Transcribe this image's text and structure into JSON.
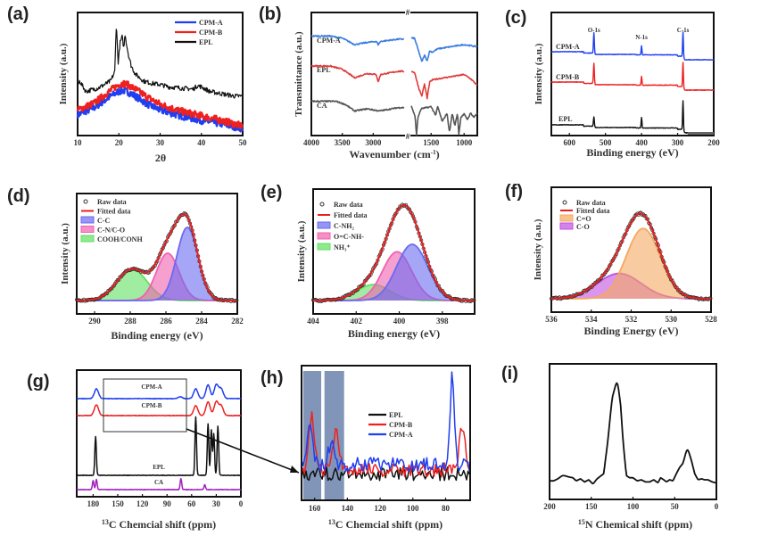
{
  "figure": {
    "panels": [
      "(a)",
      "(b)",
      "(c)",
      "(d)",
      "(e)",
      "(f)",
      "(g)",
      "(h)",
      "(i)"
    ]
  },
  "colors": {
    "blue": "#1f3ff0",
    "red": "#ee2020",
    "black": "#111111",
    "purple": "#a020c0",
    "ftir_blue": "#3a7de0",
    "ftir_red": "#e03a3a",
    "ftir_grey": "#555555",
    "shade": "#6b83ad"
  },
  "chart_data": [
    {
      "id": "a",
      "type": "line",
      "label": "(a)",
      "title": "",
      "xlabel": "2θ",
      "ylabel": "Intensity (a.u.)",
      "xlim": [
        10,
        50
      ],
      "xticks": [
        "10",
        "20",
        "30",
        "40",
        "50"
      ],
      "legend": {
        "placement": "top-right",
        "entries": [
          "CPM-A",
          "CPM-B",
          "EPL"
        ]
      },
      "series": [
        {
          "name": "CPM-A",
          "color": "blue",
          "x": [
            10,
            14,
            18,
            20,
            21,
            22,
            24,
            27,
            30,
            35,
            40,
            45,
            50
          ],
          "y": [
            0.18,
            0.24,
            0.34,
            0.38,
            0.39,
            0.38,
            0.34,
            0.27,
            0.22,
            0.17,
            0.13,
            0.1,
            0.06
          ]
        },
        {
          "name": "CPM-B",
          "color": "red",
          "x": [
            10,
            14,
            18,
            20,
            21,
            22,
            24,
            27,
            30,
            35,
            40,
            45,
            50
          ],
          "y": [
            0.22,
            0.28,
            0.39,
            0.44,
            0.45,
            0.44,
            0.4,
            0.33,
            0.27,
            0.21,
            0.17,
            0.13,
            0.08
          ]
        },
        {
          "name": "EPL",
          "color": "black",
          "x": [
            10,
            10.5,
            11,
            12,
            15,
            18,
            19,
            19.4,
            19.8,
            20.3,
            20.8,
            21.2,
            21.5,
            21.9,
            22.3,
            23,
            24,
            26,
            28,
            30,
            32,
            35,
            38,
            39,
            40,
            42,
            45,
            48,
            50
          ],
          "y": [
            0.43,
            0.47,
            0.44,
            0.38,
            0.41,
            0.47,
            0.55,
            0.98,
            0.62,
            0.8,
            0.85,
            0.75,
            0.88,
            0.78,
            0.7,
            0.6,
            0.53,
            0.47,
            0.45,
            0.44,
            0.42,
            0.41,
            0.4,
            0.43,
            0.42,
            0.38,
            0.36,
            0.34,
            0.34
          ]
        }
      ]
    },
    {
      "id": "b",
      "type": "line",
      "label": "(b)",
      "title": "",
      "xlabel": "Wavenumber (cm⁻¹)",
      "ylabel": "Transmittance (a.u.)",
      "xlim": [
        4000,
        800
      ],
      "axis_break": "2500–1800",
      "xticks": [
        "4000",
        "3500",
        "3000",
        "1500",
        "1000"
      ],
      "series": [
        {
          "name": "CPM-A",
          "color": "ftir_blue",
          "x": [
            4000,
            3700,
            3500,
            3300,
            3100,
            2950,
            2920,
            2880,
            2600,
            1800,
            1750,
            1680,
            1640,
            1600,
            1560,
            1520,
            1480,
            1400,
            1200,
            1000,
            800
          ],
          "y": [
            0.88,
            0.88,
            0.86,
            0.8,
            0.82,
            0.83,
            0.8,
            0.83,
            0.85,
            0.86,
            0.86,
            0.72,
            0.64,
            0.7,
            0.65,
            0.74,
            0.73,
            0.76,
            0.78,
            0.8,
            0.78
          ]
        },
        {
          "name": "EPL",
          "color": "ftir_red",
          "x": [
            4000,
            3700,
            3500,
            3300,
            3100,
            2950,
            2920,
            2880,
            2600,
            1800,
            1750,
            1680,
            1640,
            1600,
            1560,
            1520,
            1480,
            1400,
            1200,
            1000,
            900,
            800
          ],
          "y": [
            0.6,
            0.6,
            0.57,
            0.49,
            0.53,
            0.52,
            0.45,
            0.52,
            0.55,
            0.55,
            0.54,
            0.38,
            0.32,
            0.43,
            0.3,
            0.45,
            0.47,
            0.48,
            0.5,
            0.52,
            0.48,
            0.42
          ]
        },
        {
          "name": "CA",
          "color": "ftir_grey",
          "x": [
            4000,
            3600,
            3450,
            3300,
            3100,
            2900,
            2600,
            1800,
            1740,
            1720,
            1700,
            1650,
            1500,
            1430,
            1400,
            1330,
            1260,
            1220,
            1180,
            1140,
            1100,
            1080,
            1050,
            1000,
            950,
            900,
            850,
            800
          ],
          "y": [
            0.27,
            0.27,
            0.24,
            0.18,
            0.2,
            0.18,
            0.21,
            0.23,
            0.12,
            -0.05,
            0.12,
            0.2,
            0.22,
            0.14,
            0.22,
            0.08,
            0.16,
            -0.02,
            0.16,
            0.04,
            0.16,
            -0.04,
            0.12,
            0.15,
            0.1,
            0.16,
            0.12,
            0.16
          ]
        }
      ],
      "annotations": [
        "CPM-A",
        "EPL",
        "CA"
      ]
    },
    {
      "id": "c",
      "type": "line",
      "label": "(c)",
      "title": "",
      "xlabel": "Binding energy (eV)",
      "ylabel": "Intensity (a.u.)",
      "xlim": [
        650,
        200
      ],
      "xticks": [
        "600",
        "500",
        "400",
        "300",
        "200"
      ],
      "peak_labels": [
        "O-1s",
        "N-1s",
        "C-1s"
      ],
      "peaks_eV": {
        "O-1s": 532,
        "N-1s": 400,
        "C-1s": 285
      },
      "series": [
        {
          "name": "CPM-A",
          "color": "blue"
        },
        {
          "name": "CPM-B",
          "color": "red"
        },
        {
          "name": "EPL",
          "color": "black"
        }
      ]
    },
    {
      "id": "d",
      "type": "area",
      "label": "(d)",
      "title": "",
      "xlabel": "Binding energy (eV)",
      "ylabel": "Intensity (a.u.)",
      "xlim": [
        291,
        282
      ],
      "xticks": [
        "290",
        "288",
        "286",
        "284",
        "282"
      ],
      "legend": {
        "placement": "top-left",
        "entries": [
          "Raw data",
          "Fitted data",
          "C-C",
          "C-N/C-O",
          "COOH/CONH"
        ]
      },
      "components": [
        {
          "name": "C-C",
          "center": 284.8,
          "height": 0.82,
          "fwhm": 1.4,
          "color": "#6a6af0"
        },
        {
          "name": "C-N/C-O",
          "center": 285.9,
          "height": 0.53,
          "fwhm": 1.5,
          "color": "#f060b0"
        },
        {
          "name": "COOH/CONH",
          "center": 287.9,
          "height": 0.35,
          "fwhm": 2.0,
          "color": "#60e060"
        }
      ]
    },
    {
      "id": "e",
      "type": "area",
      "label": "(e)",
      "title": "",
      "xlabel": "Binding energy (eV)",
      "ylabel": "Intensity (a.u.)",
      "xlim": [
        404,
        396.5
      ],
      "xticks": [
        "404",
        "402",
        "400",
        "398"
      ],
      "legend": {
        "placement": "top-left",
        "entries": [
          "Raw data",
          "Fitted data",
          "C-NH₂",
          "O=C-NH-",
          "NH₃⁺"
        ]
      },
      "components": [
        {
          "name": "C-NH₂",
          "center": 399.4,
          "height": 0.6,
          "fwhm": 1.7,
          "color": "#6a6af0"
        },
        {
          "name": "O=C-NH-",
          "center": 400.1,
          "height": 0.52,
          "fwhm": 1.6,
          "color": "#f060b0"
        },
        {
          "name": "NH₃⁺",
          "center": 401.2,
          "height": 0.17,
          "fwhm": 1.8,
          "color": "#60e060"
        }
      ]
    },
    {
      "id": "f",
      "type": "area",
      "label": "(f)",
      "title": "",
      "xlabel": "Binding Energy (eV)",
      "ylabel": "Intensity (a.u.)",
      "xlim": [
        536,
        528
      ],
      "xticks": [
        "536",
        "534",
        "532",
        "530",
        "528"
      ],
      "legend": {
        "placement": "top-left",
        "entries": [
          "Raw data",
          "Fitted data",
          "C=O",
          "C-O"
        ]
      },
      "components": [
        {
          "name": "C=O",
          "center": 531.4,
          "height": 0.75,
          "fwhm": 2.0,
          "color": "#f5a860"
        },
        {
          "name": "C-O",
          "center": 532.6,
          "height": 0.27,
          "fwhm": 2.6,
          "color": "#c050e0"
        }
      ]
    },
    {
      "id": "g",
      "type": "line",
      "label": "(g)",
      "title": "",
      "xlabel": "13C Chemcial shift (ppm)",
      "ylabel": "",
      "xlim": [
        200,
        0
      ],
      "xticks": [
        "180",
        "150",
        "120",
        "90",
        "60",
        "30",
        "0"
      ],
      "annotations": [
        "CPM-A",
        "CPM-B",
        "EPL",
        "CA"
      ],
      "series": [
        {
          "name": "CPM-A",
          "color": "blue",
          "peaks": [
            [
              176,
              0.1
            ],
            [
              74,
              0.02
            ],
            [
              55,
              0.1
            ],
            [
              40,
              0.14
            ],
            [
              30,
              0.14
            ],
            [
              24,
              0.1
            ]
          ]
        },
        {
          "name": "CPM-B",
          "color": "red",
          "peaks": [
            [
              176,
              0.11
            ],
            [
              55,
              0.1
            ],
            [
              40,
              0.14
            ],
            [
              30,
              0.14
            ],
            [
              24,
              0.1
            ]
          ]
        },
        {
          "name": "EPL",
          "color": "black",
          "peaks": [
            [
              177,
              0.3
            ],
            [
              55,
              0.45
            ],
            [
              40,
              0.4
            ],
            [
              36,
              0.35
            ],
            [
              33,
              0.32
            ],
            [
              28,
              0.38
            ]
          ]
        },
        {
          "name": "CA",
          "color": "purple",
          "peaks": [
            [
              180,
              0.07
            ],
            [
              176,
              0.08
            ],
            [
              73,
              0.09
            ],
            [
              44,
              0.04
            ]
          ]
        }
      ]
    },
    {
      "id": "h",
      "type": "line",
      "label": "(h)",
      "title": "",
      "xlabel": "13C Chemcial shift (ppm)",
      "ylabel": "",
      "xlim": [
        168,
        65
      ],
      "xticks": [
        "160",
        "140",
        "120",
        "100",
        "80"
      ],
      "legend": {
        "placement": "top-right",
        "entries": [
          "EPL",
          "CPM-B",
          "CPM-A"
        ]
      },
      "highlight_ranges": [
        [
          167,
          156
        ],
        [
          154,
          142
        ]
      ],
      "series": [
        {
          "name": "EPL",
          "color": "black"
        },
        {
          "name": "CPM-B",
          "color": "red",
          "peaks": [
            [
              162,
              0.55
            ],
            [
              147,
              0.42
            ],
            [
              70,
              0.45
            ]
          ]
        },
        {
          "name": "CPM-A",
          "color": "blue",
          "peaks": [
            [
              163,
              0.35
            ],
            [
              150,
              0.2
            ],
            [
              76,
              0.9
            ]
          ]
        }
      ]
    },
    {
      "id": "i",
      "type": "line",
      "label": "(i)",
      "title": "",
      "xlabel": "15N Chemical shift (ppm)",
      "ylabel": "",
      "xlim": [
        200,
        0
      ],
      "xticks": [
        "200",
        "150",
        "100",
        "50",
        "0"
      ],
      "series": [
        {
          "name": "15N",
          "color": "black",
          "x": [
            200,
            195,
            190,
            185,
            182,
            178,
            172,
            168,
            163,
            158,
            153,
            148,
            143,
            135,
            130,
            125,
            120,
            118,
            115,
            112,
            108,
            104,
            100,
            95,
            90,
            85,
            80,
            75,
            70,
            67,
            63,
            60,
            56,
            52,
            48,
            44,
            40,
            36,
            34,
            30,
            26,
            22,
            18,
            14,
            10,
            5,
            0
          ],
          "y": [
            0.05,
            0.05,
            0.07,
            0.1,
            0.1,
            0.09,
            0.08,
            0.05,
            0.07,
            0.04,
            0.06,
            0.02,
            0.07,
            0.12,
            0.45,
            0.85,
            1.0,
            0.98,
            0.8,
            0.45,
            0.1,
            0.08,
            0.08,
            0.05,
            0.06,
            0.04,
            0.04,
            0.06,
            0.03,
            0.08,
            0.06,
            0.04,
            0.06,
            0.05,
            0.12,
            0.18,
            0.22,
            0.34,
            0.35,
            0.25,
            0.12,
            0.06,
            0.07,
            0.06,
            0.06,
            0.04,
            0.03
          ]
        }
      ]
    }
  ],
  "texts": {
    "a": {
      "label": "(a)",
      "xlabel": "2θ",
      "ylabel": "Intensity (a.u.)"
    },
    "b": {
      "label": "(b)",
      "xlabel": "Wavenumber (cm",
      "xlabel_sup": "-1",
      "xlabel_end": ")",
      "ylabel": "Transmittance (a.u.)",
      "ann": [
        "CPM-A",
        "EPL",
        "CA"
      ],
      "break": "#"
    },
    "c": {
      "label": "(c)",
      "xlabel": "Binding energy (eV)",
      "ylabel": "Intensity (a.u.)",
      "series_labels": [
        "CPM-A",
        "CPM-B",
        "EPL"
      ],
      "peaks": [
        "O-1s",
        "N-1s",
        "C-1s"
      ]
    },
    "d": {
      "label": "(d)",
      "xlabel": "Binding energy (eV)",
      "ylabel": "Intensity (a.u.)",
      "legend": [
        "Raw data",
        "Fitted data",
        "C-C",
        "C-N/C-O",
        "COOH/CONH"
      ]
    },
    "e": {
      "label": "(e)",
      "xlabel": "Binding energy (eV)",
      "ylabel": "Intensity (a.u.)",
      "legend": [
        "Raw data",
        "Fitted data",
        "C-NH",
        "O=C-NH-",
        "NH"
      ],
      "sub2": "2",
      "sub3": "3",
      "sup": "+"
    },
    "f": {
      "label": "(f)",
      "xlabel": "Binding Energy (eV)",
      "ylabel": "Intensity (a.u.)",
      "legend": [
        "Raw data",
        "Fitted data",
        "C=O",
        "C-O"
      ]
    },
    "g": {
      "label": "(g)",
      "xlabel_sup": "13",
      "xlabel": "C Chemcial shift (ppm)",
      "ann": [
        "CPM-A",
        "CPM-B",
        "EPL",
        "CA"
      ]
    },
    "h": {
      "label": "(h)",
      "xlabel_sup": "13",
      "xlabel": "C Chemcial shift (ppm)",
      "legend": [
        "EPL",
        "CPM-B",
        "CPM-A"
      ]
    },
    "i": {
      "label": "(i)",
      "xlabel_sup": "15",
      "xlabel": "N Chemical shift (ppm)"
    }
  }
}
